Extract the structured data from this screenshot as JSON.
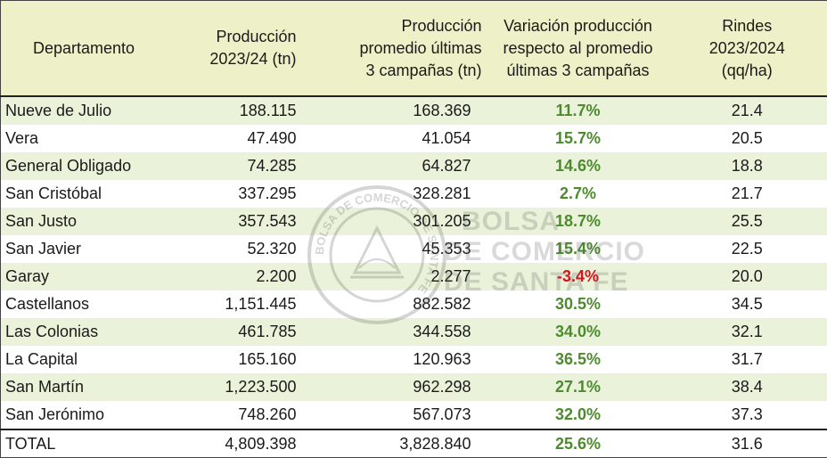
{
  "headers": {
    "departamento": "Departamento",
    "produccion": [
      "Producción",
      "2023/24 (tn)"
    ],
    "promedio": [
      "Producción",
      "promedio últimas",
      "3 campañas (tn)"
    ],
    "variacion": [
      "Variación producción",
      "respecto al promedio",
      "últimas 3 campañas"
    ],
    "rindes": [
      "Rindes",
      "2023/2024",
      "(qq/ha)"
    ]
  },
  "rows": [
    {
      "dep": "Nueve de Julio",
      "prod": "188.115",
      "prom": "168.369",
      "var": "11.7%",
      "rinde": "21.4"
    },
    {
      "dep": "Vera",
      "prod": "47.490",
      "prom": "41.054",
      "var": "15.7%",
      "rinde": "20.5"
    },
    {
      "dep": "General Obligado",
      "prod": "74.285",
      "prom": "64.827",
      "var": "14.6%",
      "rinde": "18.8"
    },
    {
      "dep": "San Cristóbal",
      "prod": "337.295",
      "prom": "328.281",
      "var": "2.7%",
      "rinde": "21.7"
    },
    {
      "dep": "San Justo",
      "prod": "357.543",
      "prom": "301.205",
      "var": "18.7%",
      "rinde": "25.5"
    },
    {
      "dep": "San Javier",
      "prod": "52.320",
      "prom": "45.353",
      "var": "15.4%",
      "rinde": "22.5"
    },
    {
      "dep": "Garay",
      "prod": "2.200",
      "prom": "2.277",
      "var": "-3.4%",
      "rinde": "20.0",
      "negative": true
    },
    {
      "dep": "Castellanos",
      "prod": "1,151.445",
      "prom": "882.582",
      "var": "30.5%",
      "rinde": "34.5"
    },
    {
      "dep": "Las Colonias",
      "prod": "461.785",
      "prom": "344.558",
      "var": "34.0%",
      "rinde": "32.1"
    },
    {
      "dep": "La Capital",
      "prod": "165.160",
      "prom": "120.963",
      "var": "36.5%",
      "rinde": "31.7"
    },
    {
      "dep": "San Martín",
      "prod": "1,223.500",
      "prom": "962.298",
      "var": "27.1%",
      "rinde": "38.4"
    },
    {
      "dep": "San Jerónimo",
      "prod": "748.260",
      "prom": "567.073",
      "var": "32.0%",
      "rinde": "37.3"
    }
  ],
  "total": {
    "dep": "TOTAL",
    "prod": "4,809.398",
    "prom": "3,828.840",
    "var": "25.6%",
    "rinde": "31.6"
  },
  "watermark": {
    "seal_text": "BOLSA DE COMERCIO DE SANTA FE",
    "lines": [
      "BOLSA",
      "DE COMERCIO",
      "DE SANTA FE"
    ]
  },
  "colors": {
    "header_bg": "#eef1c7",
    "stripe_bg": "#eaf3da",
    "positive": "#4e8a2e",
    "negative": "#d9121b"
  }
}
